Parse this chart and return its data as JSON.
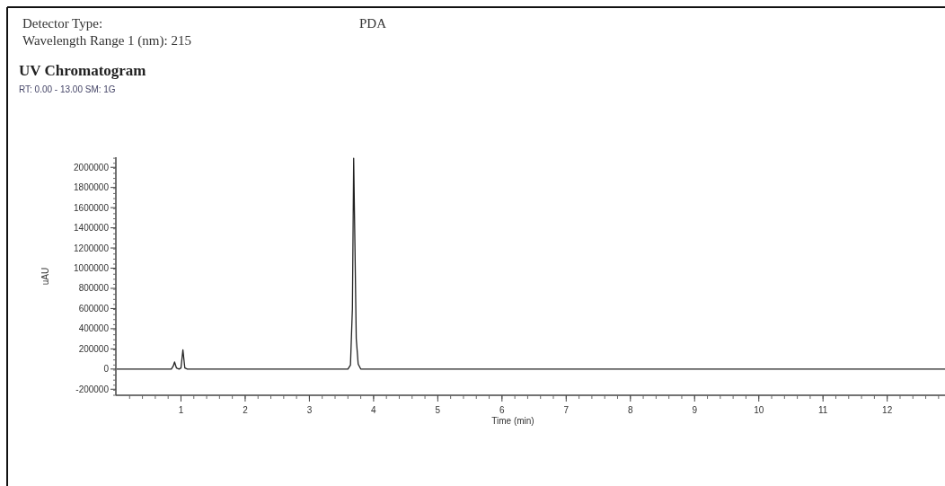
{
  "chart_data": {
    "type": "line",
    "title": "UV Chromatogram",
    "subtitle": "RT: 0.00 - 13.00  SM: 1G",
    "annotations": [
      "Detector Type:",
      "PDA",
      "Wavelength Range 1 (nm):  215"
    ],
    "xlabel": "Time (min)",
    "ylabel": "uAU",
    "series": [
      {
        "color": "#222222",
        "x": [
          0,
          0.85,
          0.88,
          0.9,
          0.93,
          0.97,
          1.0,
          1.03,
          1.06,
          1.1,
          3.6,
          3.64,
          3.67,
          3.69,
          3.71,
          3.73,
          3.76,
          3.8,
          12.9
        ],
        "values": [
          0,
          0,
          30000,
          70000,
          10000,
          0,
          10000,
          190000,
          10000,
          0,
          0,
          40000,
          600000,
          2090000,
          1200000,
          300000,
          50000,
          0,
          0
        ]
      }
    ],
    "xlim": [
      0,
      12.9
    ],
    "xticks": [
      1,
      2,
      3,
      4,
      5,
      6,
      7,
      8,
      9,
      10,
      11,
      12
    ],
    "ylim": [
      -260000,
      2100000
    ],
    "yticks": [
      -200000,
      0,
      200000,
      400000,
      600000,
      800000,
      1000000,
      1200000,
      1400000,
      1600000,
      1800000,
      2000000
    ],
    "grid": false,
    "marker": "none",
    "line_style": "solid"
  }
}
